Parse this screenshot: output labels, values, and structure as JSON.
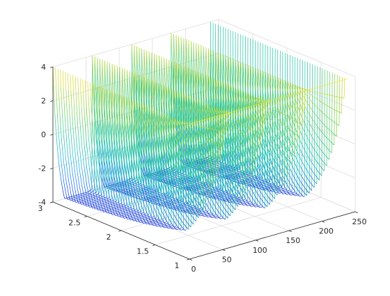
{
  "figure": {
    "background": "#ffffff",
    "axis_color": "#262626",
    "grid_color": "#dcdcdc",
    "colormap": [
      "#0c2cd6",
      "#1a73ee",
      "#18b2dc",
      "#2ac7a8",
      "#5fcf6e",
      "#a8d43d",
      "#f2e22a"
    ]
  },
  "chart_data": {
    "type": "mesh",
    "title": "",
    "xlabel": "",
    "ylabel": "",
    "zlabel": "",
    "grid": true,
    "box": "back-planes",
    "view": "3d-default",
    "xlim": [
      0,
      250
    ],
    "ylim": [
      1,
      3
    ],
    "zlim": [
      -4,
      4
    ],
    "x_ticks": [
      "0",
      "50",
      "100",
      "150",
      "200",
      "250"
    ],
    "y_ticks": [
      "1",
      "1.5",
      "2",
      "2.5",
      "3"
    ],
    "z_ticks": [
      "-4",
      "-2",
      "0",
      "2",
      "4"
    ],
    "mesh": {
      "x_range": [
        0,
        238
      ],
      "y_range": [
        1,
        3
      ],
      "lines_along_y": 56,
      "samples_along_x": 240,
      "num_cycles": 4,
      "function": "z = 4*exp(-(y-1)*u) + 4*y*u*exp(-(y-1)*u) - 4 on a sawtooth period, u = phase in [0,1)",
      "peak_z": 4,
      "floor_z": -4,
      "colored_by": "z"
    }
  }
}
